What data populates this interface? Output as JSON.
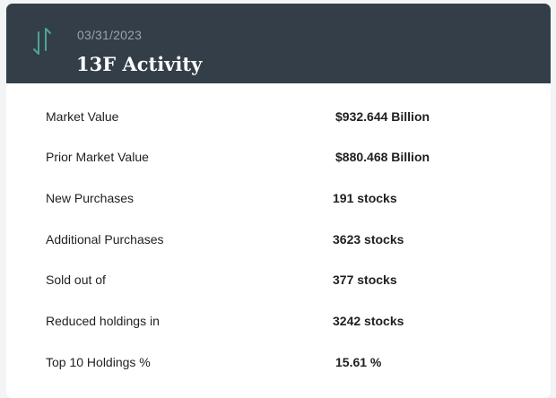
{
  "header": {
    "icon": "up-down-arrows-icon",
    "date": "03/31/2023",
    "title": "13F Activity"
  },
  "rows": [
    {
      "label": "Market Value",
      "value": "$932.644 Billion"
    },
    {
      "label": "Prior Market Value",
      "value": "$880.468 Billion"
    },
    {
      "label": "New Purchases",
      "value": "191 stocks"
    },
    {
      "label": "Additional Purchases",
      "value": "3623 stocks"
    },
    {
      "label": "Sold out of",
      "value": "377 stocks"
    },
    {
      "label": "Reduced holdings in",
      "value": "3242 stocks"
    },
    {
      "label": "Top 10 Holdings %",
      "value": "15.61 %"
    }
  ],
  "colors": {
    "header_bg": "#333e48",
    "icon_teal": "#4fa590"
  }
}
